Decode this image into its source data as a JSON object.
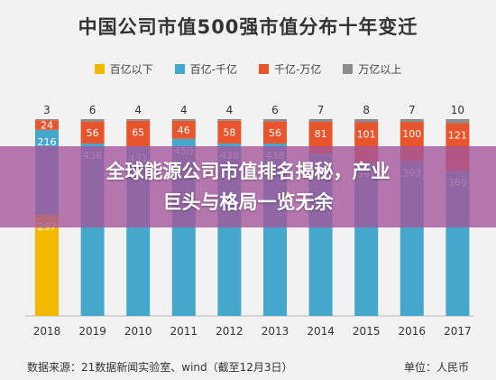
{
  "chart_data": {
    "type": "bar",
    "stacked": true,
    "title": "中国公司市值500强市值分布十年变迁",
    "categories": [
      "2018",
      "2019",
      "2010",
      "2011",
      "2012",
      "2013",
      "2014",
      "2015",
      "2016",
      "2017"
    ],
    "series": [
      {
        "name": "百亿以下",
        "color": "#f5b800",
        "values": [
          257,
          0,
          0,
          0,
          0,
          0,
          0,
          0,
          0,
          0
        ]
      },
      {
        "name": "百亿-千亿",
        "color": "#45a7cc",
        "values": [
          216,
          438,
          431,
          450,
          438,
          438,
          412,
          391,
          393,
          369
        ]
      },
      {
        "name": "千亿-万亿",
        "color": "#e8542b",
        "values": [
          24,
          56,
          65,
          46,
          58,
          56,
          81,
          101,
          100,
          121
        ]
      },
      {
        "name": "万亿以上",
        "color": "#8c8c8c",
        "values": [
          3,
          6,
          4,
          4,
          4,
          6,
          7,
          8,
          7,
          10
        ]
      }
    ],
    "ylim": [
      0,
      500
    ],
    "grid": false,
    "legend_position": "top"
  },
  "overlay": {
    "line1": "全球能源公司市值排名揭秘，产业",
    "line2": "巨头与格局一览无余"
  },
  "footer": {
    "source": "数据来源：21数据新闻实验室、wind（截至12月3日）",
    "unit": "单位：人民币"
  }
}
